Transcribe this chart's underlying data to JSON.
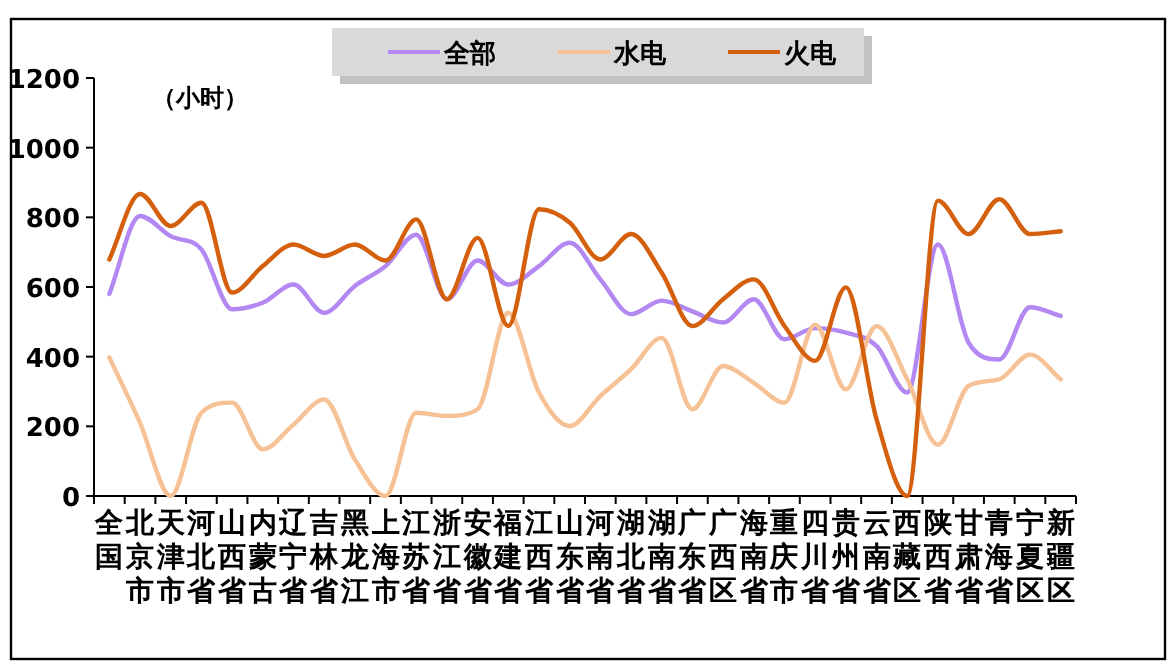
{
  "chart_data": {
    "type": "line",
    "ylabel": "（小时）",
    "categories": [
      "全国",
      "北京市",
      "天津市",
      "河北省",
      "山西省",
      "内蒙古",
      "辽宁省",
      "吉林省",
      "黑龙江",
      "上海市",
      "江苏省",
      "浙江省",
      "安徽省",
      "福建省",
      "江西省",
      "山东省",
      "河南省",
      "湖北省",
      "湖南省",
      "广东省",
      "广西区",
      "海南省",
      "重庆市",
      "四川省",
      "贵州省",
      "云南省",
      "西藏区",
      "陕西省",
      "甘肃省",
      "青海省",
      "宁夏区",
      "新疆区"
    ],
    "series": [
      {
        "name": "全部",
        "color": "#b388f2",
        "values": [
          580,
          804,
          746,
          708,
          536,
          555,
          607,
          526,
          603,
          660,
          750,
          565,
          676,
          607,
          660,
          727,
          622,
          522,
          561,
          530,
          498,
          565,
          450,
          482,
          469,
          431,
          297,
          722,
          440,
          392,
          542,
          517
        ]
      },
      {
        "name": "水电",
        "color": "#f6c194",
        "values": [
          398,
          210,
          0,
          239,
          268,
          134,
          205,
          277,
          105,
          0,
          239,
          230,
          249,
          526,
          297,
          201,
          287,
          364,
          454,
          249,
          373,
          325,
          268,
          492,
          306,
          488,
          335,
          147,
          316,
          335,
          406,
          335
        ]
      },
      {
        "name": "火电",
        "color": "#d4600e",
        "values": [
          679,
          867,
          775,
          842,
          584,
          660,
          722,
          689,
          722,
          676,
          794,
          565,
          741,
          488,
          823,
          785,
          679,
          752,
          641,
          488,
          565,
          622,
          488,
          388,
          599,
          220,
          0,
          848,
          752,
          852,
          752,
          760
        ]
      }
    ],
    "ylim": [
      0,
      1200
    ],
    "yticks": [
      0,
      200,
      400,
      600,
      800,
      1000,
      1200
    ],
    "grid": false,
    "legend": "top",
    "marker": "none",
    "line_style": "solid"
  }
}
